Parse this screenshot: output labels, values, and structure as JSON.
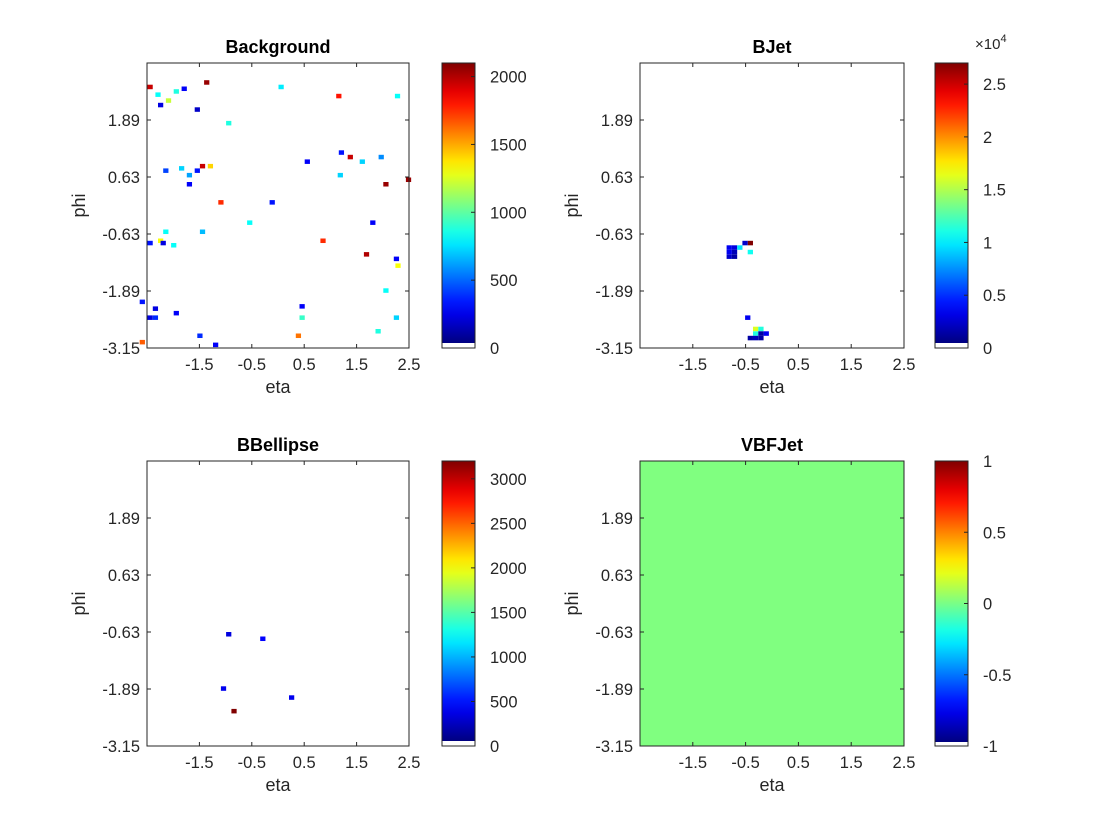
{
  "chart_data": [
    {
      "type": "heatmap",
      "title": "Background",
      "xlabel": "eta",
      "ylabel": "phi",
      "xlim": [
        -2.5,
        2.5
      ],
      "ylim": [
        -3.15,
        3.15
      ],
      "xticks": [
        "-1.5",
        "-0.5",
        "0.5",
        "1.5",
        "2.5"
      ],
      "yticks": [
        "-3.15",
        "-1.89",
        "-0.63",
        "0.63",
        "1.89"
      ],
      "clim": [
        0,
        2100
      ],
      "colorbar_ticks": [
        "0",
        "500",
        "1000",
        "1500",
        "2000"
      ],
      "colorbar_exponent": "",
      "cells": [
        {
          "x": -2.44,
          "y": 2.62,
          "v": 1950
        },
        {
          "x": -1.36,
          "y": 2.72,
          "v": 2050
        },
        {
          "x": -2.29,
          "y": 2.45,
          "v": 800
        },
        {
          "x": -2.09,
          "y": 2.32,
          "v": 1200
        },
        {
          "x": -1.94,
          "y": 2.52,
          "v": 850
        },
        {
          "x": -1.79,
          "y": 2.58,
          "v": 250
        },
        {
          "x": -2.24,
          "y": 2.22,
          "v": 200
        },
        {
          "x": -1.54,
          "y": 2.12,
          "v": 150
        },
        {
          "x": 0.06,
          "y": 2.62,
          "v": 750
        },
        {
          "x": 1.16,
          "y": 2.42,
          "v": 1800
        },
        {
          "x": 2.28,
          "y": 2.42,
          "v": 800
        },
        {
          "x": -0.94,
          "y": 1.82,
          "v": 850
        },
        {
          "x": 1.21,
          "y": 1.17,
          "v": 300
        },
        {
          "x": 1.38,
          "y": 1.07,
          "v": 1950
        },
        {
          "x": 0.56,
          "y": 0.97,
          "v": 250
        },
        {
          "x": 1.61,
          "y": 0.97,
          "v": 700
        },
        {
          "x": 1.97,
          "y": 1.07,
          "v": 550
        },
        {
          "x": -1.44,
          "y": 0.87,
          "v": 1950
        },
        {
          "x": -1.29,
          "y": 0.87,
          "v": 1400
        },
        {
          "x": -1.54,
          "y": 0.77,
          "v": 300
        },
        {
          "x": -2.14,
          "y": 0.77,
          "v": 400
        },
        {
          "x": -1.69,
          "y": 0.67,
          "v": 600
        },
        {
          "x": -1.84,
          "y": 0.82,
          "v": 700
        },
        {
          "x": 1.19,
          "y": 0.67,
          "v": 700
        },
        {
          "x": 2.06,
          "y": 0.47,
          "v": 2050
        },
        {
          "x": 2.49,
          "y": 0.57,
          "v": 2050
        },
        {
          "x": -1.69,
          "y": 0.47,
          "v": 250
        },
        {
          "x": -1.09,
          "y": 0.07,
          "v": 1750
        },
        {
          "x": -0.11,
          "y": 0.07,
          "v": 300
        },
        {
          "x": 1.81,
          "y": -0.38,
          "v": 250
        },
        {
          "x": -0.54,
          "y": -0.38,
          "v": 800
        },
        {
          "x": -2.14,
          "y": -0.58,
          "v": 800
        },
        {
          "x": -1.44,
          "y": -0.58,
          "v": 650
        },
        {
          "x": 0.86,
          "y": -0.78,
          "v": 1750
        },
        {
          "x": -2.44,
          "y": -0.83,
          "v": 300
        },
        {
          "x": -2.24,
          "y": -0.78,
          "v": 1300
        },
        {
          "x": -2.19,
          "y": -0.83,
          "v": 200
        },
        {
          "x": -1.99,
          "y": -0.88,
          "v": 800
        },
        {
          "x": 1.69,
          "y": -1.08,
          "v": 2000
        },
        {
          "x": 2.26,
          "y": -1.18,
          "v": 250
        },
        {
          "x": 2.29,
          "y": -1.33,
          "v": 1300
        },
        {
          "x": 2.06,
          "y": -1.88,
          "v": 800
        },
        {
          "x": -2.59,
          "y": -2.13,
          "v": 300
        },
        {
          "x": -2.34,
          "y": -2.28,
          "v": 200
        },
        {
          "x": -2.34,
          "y": -2.48,
          "v": 350
        },
        {
          "x": -2.44,
          "y": -2.48,
          "v": 200
        },
        {
          "x": -1.94,
          "y": -2.38,
          "v": 250
        },
        {
          "x": 0.46,
          "y": -2.23,
          "v": 250
        },
        {
          "x": 0.46,
          "y": -2.48,
          "v": 900
        },
        {
          "x": 2.26,
          "y": -2.48,
          "v": 700
        },
        {
          "x": 1.91,
          "y": -2.78,
          "v": 850
        },
        {
          "x": -1.49,
          "y": -2.88,
          "v": 350
        },
        {
          "x": 0.39,
          "y": -2.88,
          "v": 1600
        },
        {
          "x": -2.59,
          "y": -3.02,
          "v": 1650
        },
        {
          "x": -1.19,
          "y": -3.08,
          "v": 250
        }
      ]
    },
    {
      "type": "heatmap",
      "title": "BJet",
      "xlabel": "eta",
      "ylabel": "phi",
      "xlim": [
        -2.5,
        2.5
      ],
      "ylim": [
        -3.15,
        3.15
      ],
      "xticks": [
        "-1.5",
        "-0.5",
        "0.5",
        "1.5",
        "2.5"
      ],
      "yticks": [
        "-3.15",
        "-1.89",
        "-0.63",
        "0.63",
        "1.89"
      ],
      "clim": [
        0,
        27000
      ],
      "colorbar_ticks": [
        "0",
        "0.5",
        "1",
        "1.5",
        "2",
        "2.5"
      ],
      "colorbar_exponent": "×10^4",
      "cells": [
        {
          "x": -0.41,
          "y": -0.83,
          "v": 27000
        },
        {
          "x": -0.51,
          "y": -0.83,
          "v": 2000
        },
        {
          "x": -0.71,
          "y": -0.93,
          "v": 2500
        },
        {
          "x": -0.81,
          "y": -0.93,
          "v": 3000
        },
        {
          "x": -0.61,
          "y": -0.93,
          "v": 9500
        },
        {
          "x": -0.41,
          "y": -1.03,
          "v": 10500
        },
        {
          "x": -0.71,
          "y": -1.03,
          "v": 1500
        },
        {
          "x": -0.81,
          "y": -1.03,
          "v": 3000
        },
        {
          "x": -0.81,
          "y": -1.13,
          "v": 2000
        },
        {
          "x": -0.71,
          "y": -1.13,
          "v": 1000
        },
        {
          "x": -0.46,
          "y": -2.48,
          "v": 3000
        },
        {
          "x": -0.31,
          "y": -2.73,
          "v": 16000
        },
        {
          "x": -0.21,
          "y": -2.73,
          "v": 11000
        },
        {
          "x": -0.31,
          "y": -2.83,
          "v": 11000
        },
        {
          "x": -0.11,
          "y": -2.83,
          "v": 3000
        },
        {
          "x": -0.21,
          "y": -2.83,
          "v": 1000
        },
        {
          "x": -0.41,
          "y": -2.93,
          "v": 1000
        },
        {
          "x": -0.31,
          "y": -2.93,
          "v": 1500
        },
        {
          "x": -0.21,
          "y": -2.93,
          "v": 1000
        }
      ]
    },
    {
      "type": "heatmap",
      "title": "BBellipse",
      "xlabel": "eta",
      "ylabel": "phi",
      "xlim": [
        -2.5,
        2.5
      ],
      "ylim": [
        -3.15,
        3.15
      ],
      "xticks": [
        "-1.5",
        "-0.5",
        "0.5",
        "1.5",
        "2.5"
      ],
      "yticks": [
        "-3.15",
        "-1.89",
        "-0.63",
        "0.63",
        "1.89"
      ],
      "clim": [
        0,
        3200
      ],
      "colorbar_ticks": [
        "0",
        "500",
        "1000",
        "1500",
        "2000",
        "2500",
        "3000"
      ],
      "colorbar_exponent": "",
      "cells": [
        {
          "x": -0.94,
          "y": -0.68,
          "v": 300
        },
        {
          "x": -0.29,
          "y": -0.78,
          "v": 400
        },
        {
          "x": -1.04,
          "y": -1.88,
          "v": 350
        },
        {
          "x": 0.26,
          "y": -2.08,
          "v": 350
        },
        {
          "x": -0.84,
          "y": -2.38,
          "v": 3200
        }
      ]
    },
    {
      "type": "heatmap",
      "title": "VBFJet",
      "xlabel": "eta",
      "ylabel": "phi",
      "xlim": [
        -2.5,
        2.5
      ],
      "ylim": [
        -3.15,
        3.15
      ],
      "xticks": [
        "-1.5",
        "-0.5",
        "0.5",
        "1.5",
        "2.5"
      ],
      "yticks": [
        "-3.15",
        "-1.89",
        "-0.63",
        "0.63",
        "1.89"
      ],
      "clim": [
        -1,
        1
      ],
      "colorbar_ticks": [
        "-1",
        "-0.5",
        "0",
        "0.5",
        "1"
      ],
      "colorbar_exponent": "",
      "fill_all": 0,
      "cells": []
    }
  ]
}
